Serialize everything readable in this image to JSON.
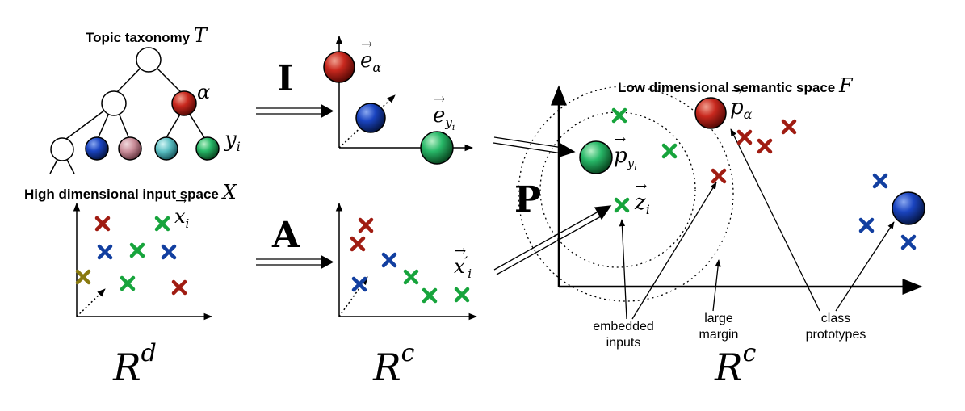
{
  "labels": {
    "topic_taxonomy": "Topic taxonomy",
    "taxonomy_symbol": "T",
    "alpha": "α",
    "y_i": "y",
    "y_i_sub": "i",
    "high_dim_input": "High dimensional input space",
    "input_symbol": "X",
    "x_i": "x",
    "x_i_sub": "i",
    "x_i_prime": "x",
    "x_i_prime_sup": "′",
    "x_i_prime_sub": "i",
    "I_map": "I",
    "A_map": "A",
    "P_map": "P",
    "e_alpha": "e",
    "e_alpha_sub": "α",
    "e_yi": "e",
    "e_yi_sub": "y",
    "e_yi_subsub": "i",
    "low_dim_semantic": "Low dimensional semantic space",
    "semantic_symbol": "F",
    "p_alpha": "p",
    "p_alpha_sub": "α",
    "p_yi": "p",
    "p_yi_sub": "y",
    "p_yi_subsub": "i",
    "z_i": "z",
    "z_i_sub": "i",
    "embedded_inputs_1": "embedded",
    "embedded_inputs_2": "inputs",
    "large_margin_1": "large",
    "large_margin_2": "margin",
    "class_prototypes_1": "class",
    "class_prototypes_2": "prototypes",
    "space_Rd": "R",
    "space_Rd_sup": "d",
    "space_Rc1": "R",
    "space_Rc1_sup": "c",
    "space_Rc2": "R",
    "space_Rc2_sup": "c"
  },
  "colors": {
    "red": "#a01c12",
    "green": "#17a43c",
    "blue": "#123fa0",
    "olive": "#8a7a10",
    "pink": "#c98a95",
    "teal": "#4fb8b8",
    "node_red": "#b8201a",
    "node_blue": "#1436a8",
    "node_green": "#22b060"
  }
}
